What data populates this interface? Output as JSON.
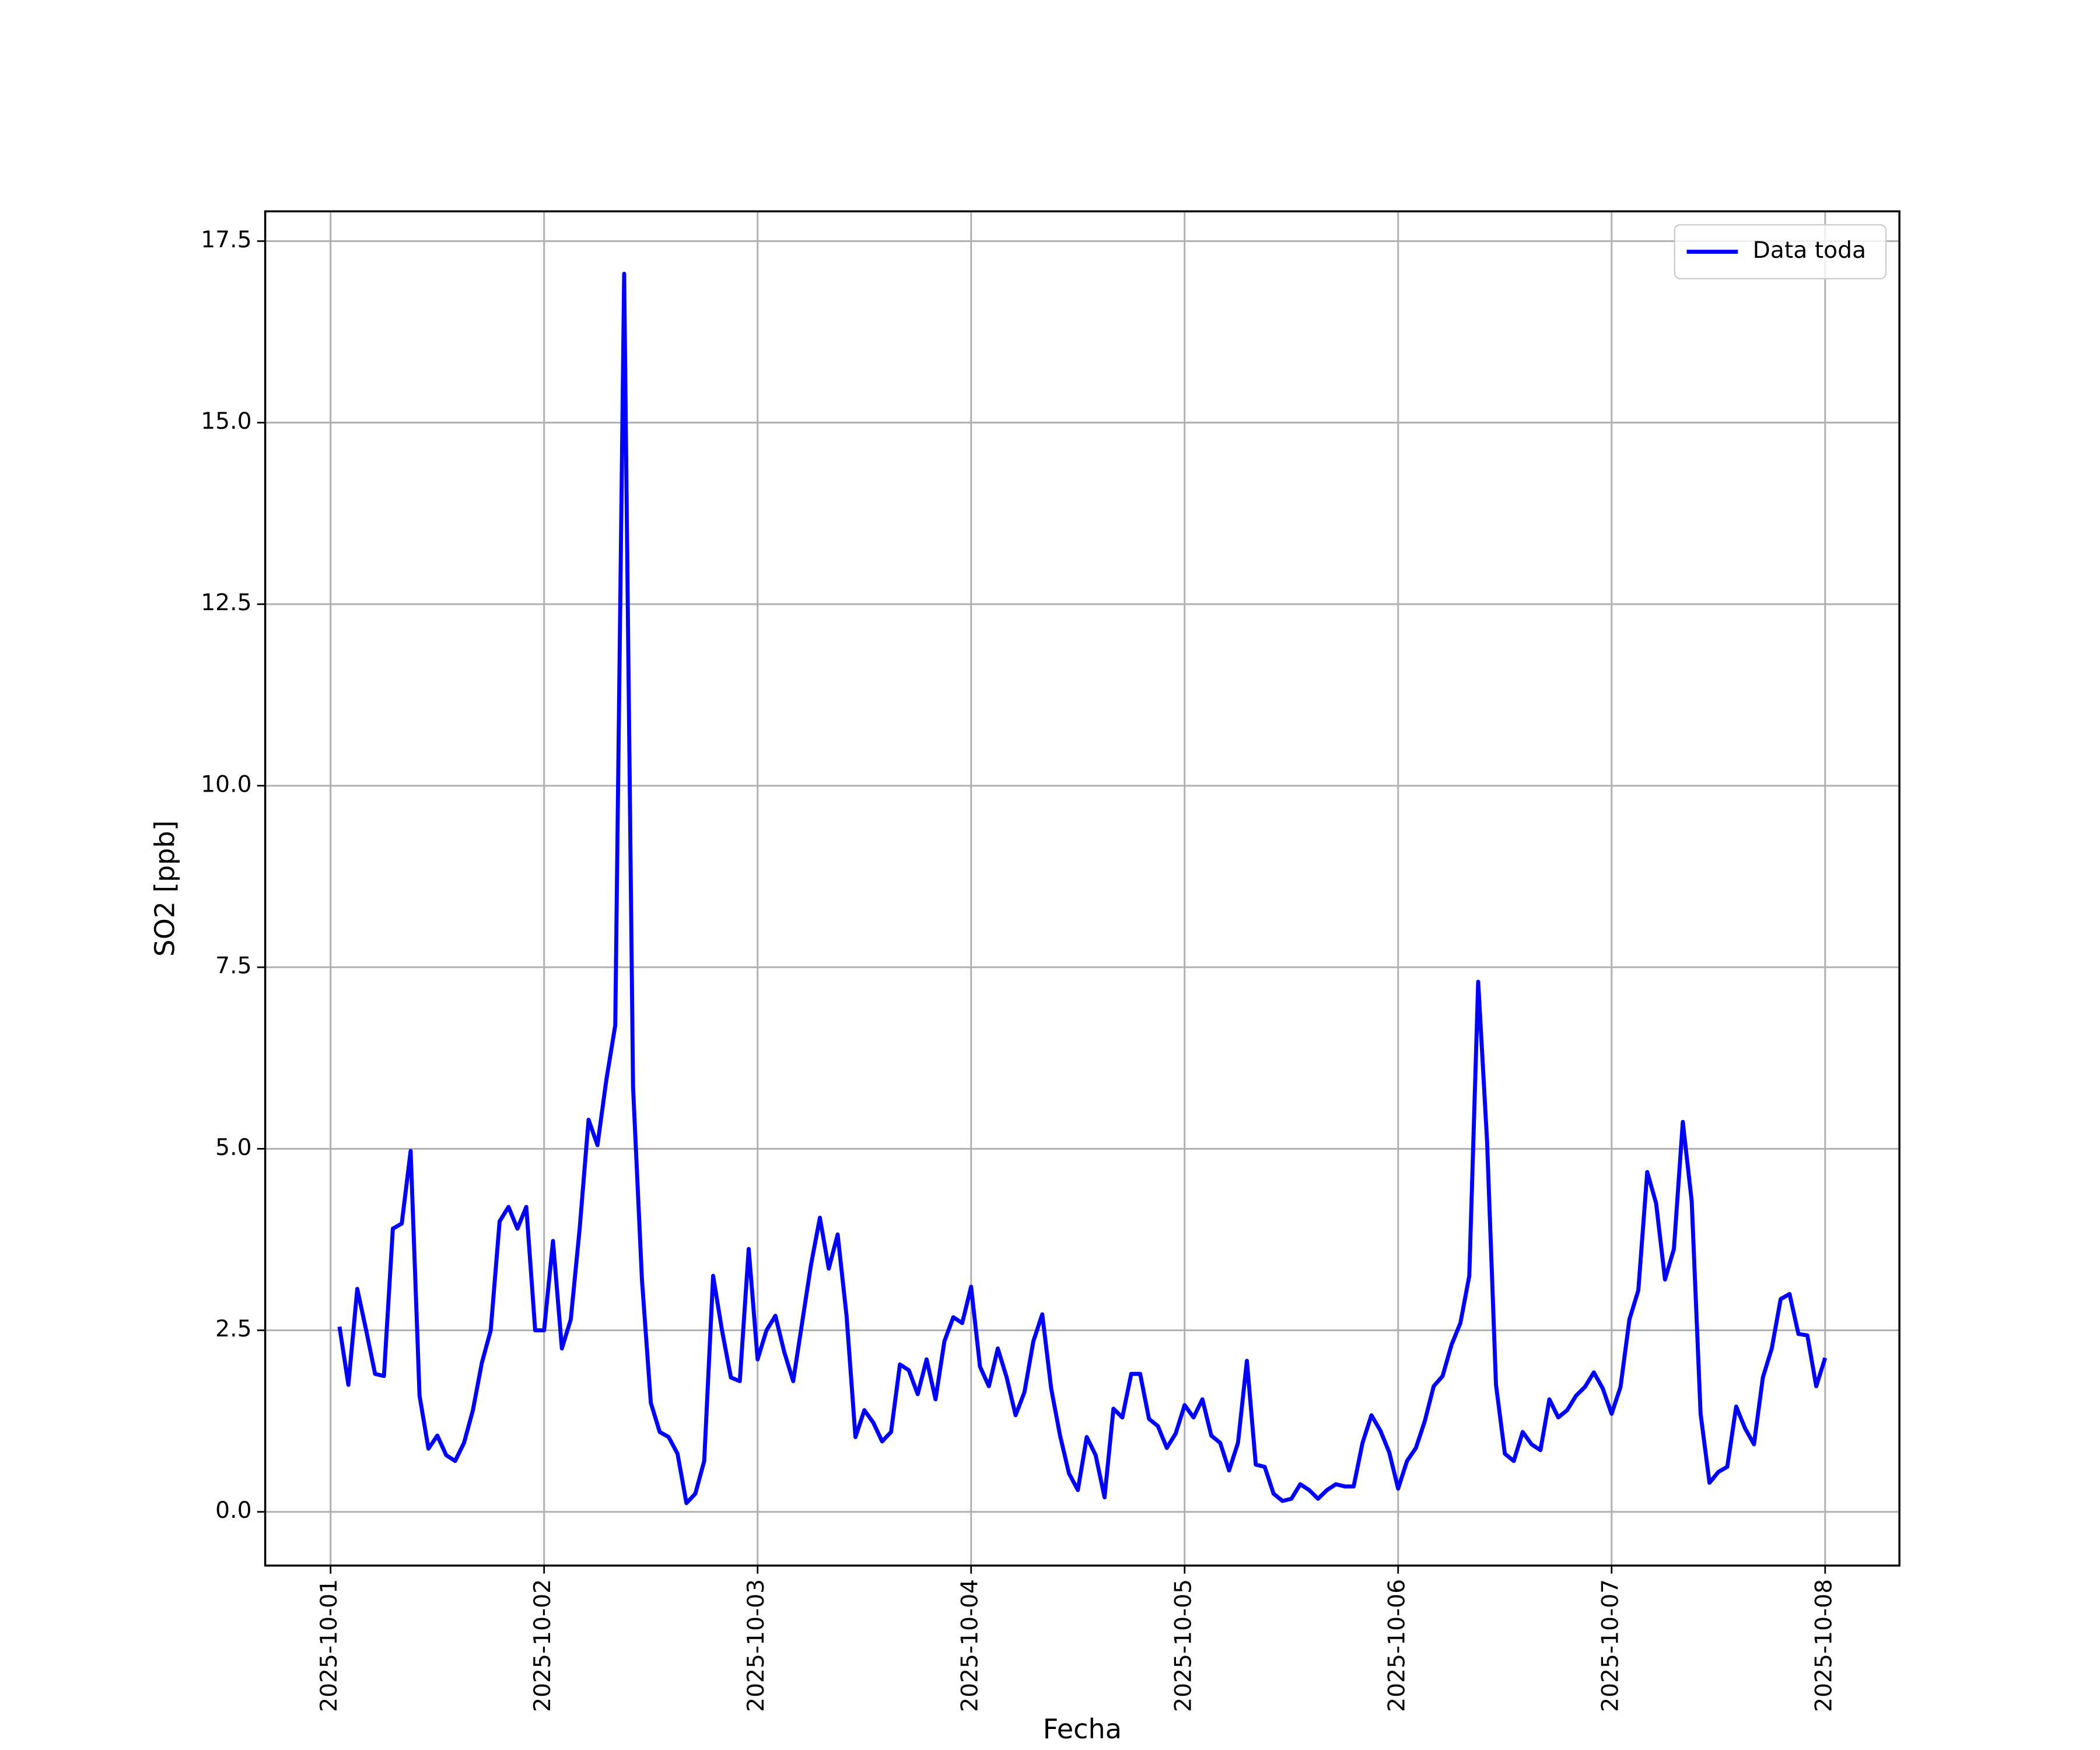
{
  "chart_data": {
    "type": "line",
    "xlabel": "Fecha",
    "ylabel": "SO2 [ppb]",
    "x": [
      "2025-10-01T01:00",
      "2025-10-01T02:00",
      "2025-10-01T03:00",
      "2025-10-01T04:00",
      "2025-10-01T05:00",
      "2025-10-01T06:00",
      "2025-10-01T07:00",
      "2025-10-01T08:00",
      "2025-10-01T09:00",
      "2025-10-01T10:00",
      "2025-10-01T11:00",
      "2025-10-01T12:00",
      "2025-10-01T13:00",
      "2025-10-01T14:00",
      "2025-10-01T15:00",
      "2025-10-01T16:00",
      "2025-10-01T17:00",
      "2025-10-01T18:00",
      "2025-10-01T19:00",
      "2025-10-01T20:00",
      "2025-10-01T21:00",
      "2025-10-01T22:00",
      "2025-10-01T23:00",
      "2025-10-02T00:00",
      "2025-10-02T01:00",
      "2025-10-02T02:00",
      "2025-10-02T03:00",
      "2025-10-02T04:00",
      "2025-10-02T05:00",
      "2025-10-02T06:00",
      "2025-10-02T07:00",
      "2025-10-02T08:00",
      "2025-10-02T09:00",
      "2025-10-02T10:00",
      "2025-10-02T11:00",
      "2025-10-02T12:00",
      "2025-10-02T13:00",
      "2025-10-02T14:00",
      "2025-10-02T15:00",
      "2025-10-02T16:00",
      "2025-10-02T17:00",
      "2025-10-02T18:00",
      "2025-10-02T19:00",
      "2025-10-02T20:00",
      "2025-10-02T21:00",
      "2025-10-02T22:00",
      "2025-10-02T23:00",
      "2025-10-03T00:00",
      "2025-10-03T01:00",
      "2025-10-03T02:00",
      "2025-10-03T03:00",
      "2025-10-03T04:00",
      "2025-10-03T05:00",
      "2025-10-03T06:00",
      "2025-10-03T07:00",
      "2025-10-03T08:00",
      "2025-10-03T09:00",
      "2025-10-03T10:00",
      "2025-10-03T11:00",
      "2025-10-03T12:00",
      "2025-10-03T13:00",
      "2025-10-03T14:00",
      "2025-10-03T15:00",
      "2025-10-03T16:00",
      "2025-10-03T17:00",
      "2025-10-03T18:00",
      "2025-10-03T19:00",
      "2025-10-03T20:00",
      "2025-10-03T21:00",
      "2025-10-03T22:00",
      "2025-10-03T23:00",
      "2025-10-04T00:00",
      "2025-10-04T01:00",
      "2025-10-04T02:00",
      "2025-10-04T03:00",
      "2025-10-04T04:00",
      "2025-10-04T05:00",
      "2025-10-04T06:00",
      "2025-10-04T07:00",
      "2025-10-04T08:00",
      "2025-10-04T09:00",
      "2025-10-04T10:00",
      "2025-10-04T11:00",
      "2025-10-04T12:00",
      "2025-10-04T13:00",
      "2025-10-04T14:00",
      "2025-10-04T15:00",
      "2025-10-04T16:00",
      "2025-10-04T17:00",
      "2025-10-04T18:00",
      "2025-10-04T19:00",
      "2025-10-04T20:00",
      "2025-10-04T21:00",
      "2025-10-04T22:00",
      "2025-10-04T23:00",
      "2025-10-05T00:00",
      "2025-10-05T01:00",
      "2025-10-05T02:00",
      "2025-10-05T03:00",
      "2025-10-05T04:00",
      "2025-10-05T05:00",
      "2025-10-05T06:00",
      "2025-10-05T07:00",
      "2025-10-05T08:00",
      "2025-10-05T09:00",
      "2025-10-05T10:00",
      "2025-10-05T11:00",
      "2025-10-05T12:00",
      "2025-10-05T13:00",
      "2025-10-05T14:00",
      "2025-10-05T15:00",
      "2025-10-05T16:00",
      "2025-10-05T17:00",
      "2025-10-05T18:00",
      "2025-10-05T19:00",
      "2025-10-05T20:00",
      "2025-10-05T21:00",
      "2025-10-05T22:00",
      "2025-10-05T23:00",
      "2025-10-06T00:00",
      "2025-10-06T01:00",
      "2025-10-06T02:00",
      "2025-10-06T03:00",
      "2025-10-06T04:00",
      "2025-10-06T05:00",
      "2025-10-06T06:00",
      "2025-10-06T07:00",
      "2025-10-06T08:00",
      "2025-10-06T09:00",
      "2025-10-06T10:00",
      "2025-10-06T11:00",
      "2025-10-06T12:00",
      "2025-10-06T13:00",
      "2025-10-06T14:00",
      "2025-10-06T15:00",
      "2025-10-06T16:00",
      "2025-10-06T17:00",
      "2025-10-06T18:00",
      "2025-10-06T19:00",
      "2025-10-06T20:00",
      "2025-10-06T21:00",
      "2025-10-06T22:00",
      "2025-10-06T23:00",
      "2025-10-07T00:00",
      "2025-10-07T01:00",
      "2025-10-07T02:00",
      "2025-10-07T03:00",
      "2025-10-07T04:00",
      "2025-10-07T05:00",
      "2025-10-07T06:00",
      "2025-10-07T07:00",
      "2025-10-07T08:00",
      "2025-10-07T09:00",
      "2025-10-07T10:00",
      "2025-10-07T11:00",
      "2025-10-07T12:00",
      "2025-10-07T13:00",
      "2025-10-07T14:00",
      "2025-10-07T15:00",
      "2025-10-07T16:00",
      "2025-10-07T17:00",
      "2025-10-07T18:00",
      "2025-10-07T19:00",
      "2025-10-07T20:00",
      "2025-10-07T21:00",
      "2025-10-07T22:00",
      "2025-10-07T23:00",
      "2025-10-08T00:00"
    ],
    "series": [
      {
        "name": "Data toda",
        "color": "#0000ff",
        "values": [
          2.55,
          1.75,
          3.07,
          2.5,
          1.9,
          1.87,
          3.9,
          3.97,
          4.97,
          1.6,
          0.87,
          1.05,
          0.78,
          0.7,
          0.95,
          1.4,
          2.05,
          2.5,
          4.0,
          4.2,
          3.9,
          4.2,
          2.5,
          2.5,
          3.73,
          2.25,
          2.65,
          3.9,
          5.4,
          5.05,
          5.95,
          6.7,
          17.05,
          5.85,
          3.2,
          1.5,
          1.1,
          1.03,
          0.8,
          0.12,
          0.25,
          0.7,
          3.25,
          2.5,
          1.85,
          1.8,
          3.62,
          2.1,
          2.5,
          2.7,
          2.2,
          1.8,
          2.6,
          3.4,
          4.05,
          3.35,
          3.82,
          2.7,
          1.03,
          1.4,
          1.23,
          0.97,
          1.1,
          2.03,
          1.95,
          1.62,
          2.1,
          1.55,
          2.35,
          2.68,
          2.6,
          3.1,
          2.0,
          1.73,
          2.25,
          1.85,
          1.33,
          1.65,
          2.35,
          2.72,
          1.7,
          1.05,
          0.53,
          0.3,
          1.03,
          0.78,
          0.2,
          1.42,
          1.3,
          1.9,
          1.9,
          1.28,
          1.18,
          0.88,
          1.08,
          1.47,
          1.3,
          1.55,
          1.05,
          0.95,
          0.57,
          0.95,
          2.08,
          0.65,
          0.62,
          0.25,
          0.15,
          0.18,
          0.38,
          0.3,
          0.18,
          0.3,
          0.38,
          0.35,
          0.35,
          0.95,
          1.33,
          1.12,
          0.82,
          0.32,
          0.7,
          0.88,
          1.25,
          1.73,
          1.87,
          2.3,
          2.6,
          3.25,
          7.3,
          5.1,
          1.75,
          0.8,
          0.7,
          1.1,
          0.93,
          0.85,
          1.55,
          1.3,
          1.4,
          1.6,
          1.72,
          1.92,
          1.7,
          1.35,
          1.72,
          2.65,
          3.05,
          4.68,
          4.25,
          3.2,
          3.62,
          5.37,
          4.28,
          1.35,
          0.4,
          0.55,
          0.62,
          1.45,
          1.15,
          0.93,
          1.85,
          2.25,
          2.93,
          3.0,
          2.45,
          2.43,
          1.73,
          2.12
        ]
      }
    ],
    "xlim": [
      "2025-09-30T16:39",
      "2025-10-08T08:21"
    ],
    "xticks": [
      "2025-10-01",
      "2025-10-02",
      "2025-10-03",
      "2025-10-04",
      "2025-10-05",
      "2025-10-06",
      "2025-10-07",
      "2025-10-08"
    ],
    "ylim": [
      -0.74,
      17.91
    ],
    "yticks": [
      {
        "value": 0,
        "label": "0.0"
      },
      2.5,
      {
        "value": 5,
        "label": "5.0"
      },
      7.5,
      {
        "value": 10,
        "label": "10.0"
      },
      12.5,
      {
        "value": 15,
        "label": "15.0"
      },
      17.5
    ],
    "grid": true,
    "legend": "upper right"
  }
}
